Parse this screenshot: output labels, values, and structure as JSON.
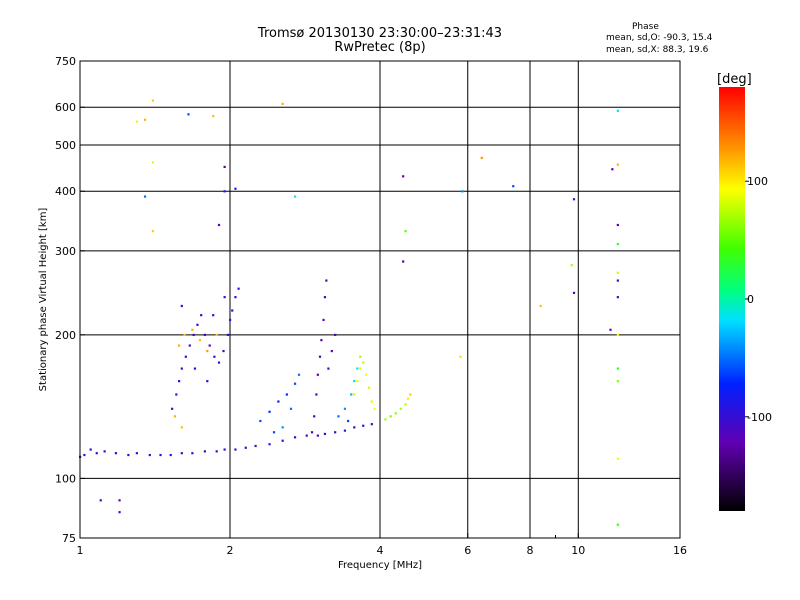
{
  "header": {
    "title_line1": "Tromsø 20130130 23:30:00–23:31:43",
    "title_line2": "RwPretec (8p)",
    "phase_heading": "Phase",
    "phase_line1": "mean, sd,O: -90.3, 15.4",
    "phase_line2": "mean, sd,X:  88.3, 19.6"
  },
  "colorbar": {
    "unit": "[deg]",
    "range": [
      -180,
      180
    ],
    "ticks": [
      {
        "label": "100",
        "value": 100
      },
      {
        "label": "0",
        "value": 0
      },
      {
        "label": "-100",
        "value": -100
      }
    ]
  },
  "chart_data": {
    "type": "scatter",
    "title": "Tromsø 20130130 23:30:00–23:31:43",
    "subtitle": "RwPretec (8p)",
    "xlabel": "Frequency [MHz]",
    "ylabel": "Stationary phase Virtual Height [km]",
    "x_scale": "log",
    "y_scale": "log",
    "xlim": [
      1,
      16
    ],
    "ylim": [
      75,
      750
    ],
    "x_ticks": [
      {
        "label": "1",
        "value": 1
      },
      {
        "label": "2",
        "value": 2
      },
      {
        "label": "4",
        "value": 4
      },
      {
        "label": "6",
        "value": 6
      },
      {
        "label": "8",
        "value": 8
      },
      {
        "label": "10",
        "value": 10
      },
      {
        "label": "16",
        "value": 16
      }
    ],
    "x_minor": [
      9
    ],
    "x_grid": [
      2,
      4,
      6,
      8,
      10
    ],
    "y_ticks": [
      {
        "label": "75",
        "value": 75
      },
      {
        "label": "100",
        "value": 100
      },
      {
        "label": "200",
        "value": 200
      },
      {
        "label": "300",
        "value": 300
      },
      {
        "label": "400",
        "value": 400
      },
      {
        "label": "500",
        "value": 500
      },
      {
        "label": "600",
        "value": 600
      },
      {
        "label": "750",
        "value": 750
      }
    ],
    "y_grid": [
      100,
      200,
      300,
      400,
      500,
      600
    ],
    "grid": true,
    "color_by": "phase [deg]",
    "color_range": [
      -180,
      180
    ],
    "series": [
      {
        "points": [
          [
            1.0,
            111,
            -100
          ],
          [
            1.02,
            112,
            -110
          ],
          [
            1.05,
            115,
            -95
          ],
          [
            1.08,
            113,
            -105
          ],
          [
            1.12,
            114,
            -100
          ],
          [
            1.18,
            113,
            -95
          ],
          [
            1.25,
            112,
            -110
          ],
          [
            1.3,
            113,
            -100
          ],
          [
            1.38,
            112,
            -105
          ],
          [
            1.45,
            112,
            -100
          ],
          [
            1.52,
            112,
            -95
          ],
          [
            1.6,
            113,
            -105
          ],
          [
            1.68,
            113,
            -100
          ],
          [
            1.78,
            114,
            -110
          ],
          [
            1.88,
            114,
            -100
          ],
          [
            1.95,
            115,
            -95
          ],
          [
            2.05,
            115,
            -105
          ],
          [
            2.15,
            116,
            -100
          ],
          [
            2.25,
            117,
            -110
          ],
          [
            2.4,
            118,
            -100
          ],
          [
            2.55,
            120,
            -105
          ],
          [
            2.7,
            122,
            -95
          ],
          [
            2.85,
            123,
            -100
          ],
          [
            3.0,
            123,
            -110
          ],
          [
            3.1,
            124,
            -100
          ],
          [
            3.25,
            125,
            -105
          ],
          [
            3.4,
            126,
            -95
          ],
          [
            3.55,
            128,
            -110
          ],
          [
            3.7,
            129,
            -100
          ],
          [
            3.85,
            130,
            -105
          ]
        ]
      },
      {
        "points": [
          [
            1.53,
            140,
            -100
          ],
          [
            1.56,
            150,
            -95
          ],
          [
            1.58,
            160,
            -100
          ],
          [
            1.6,
            170,
            -110
          ],
          [
            1.63,
            180,
            -95
          ],
          [
            1.66,
            190,
            -100
          ],
          [
            1.69,
            200,
            -105
          ],
          [
            1.72,
            210,
            -100
          ],
          [
            1.75,
            220,
            -95
          ],
          [
            1.78,
            200,
            -110
          ],
          [
            1.82,
            190,
            -100
          ],
          [
            1.86,
            180,
            -105
          ],
          [
            1.9,
            175,
            -95
          ],
          [
            1.94,
            185,
            -100
          ],
          [
            1.98,
            200,
            -110
          ],
          [
            2.0,
            215,
            -100
          ],
          [
            2.02,
            225,
            -95
          ],
          [
            2.05,
            240,
            -105
          ],
          [
            2.08,
            250,
            -100
          ],
          [
            1.6,
            230,
            -95
          ],
          [
            1.7,
            170,
            -100
          ],
          [
            1.8,
            160,
            -105
          ],
          [
            1.85,
            220,
            -100
          ],
          [
            1.95,
            240,
            -110
          ]
        ]
      },
      {
        "points": [
          [
            1.58,
            190,
            120
          ],
          [
            1.62,
            200,
            110
          ],
          [
            1.68,
            205,
            120
          ],
          [
            1.74,
            195,
            115
          ],
          [
            1.8,
            185,
            125
          ],
          [
            1.88,
            200,
            110
          ],
          [
            1.55,
            135,
            120
          ],
          [
            1.6,
            128,
            115
          ]
        ]
      },
      {
        "points": [
          [
            2.3,
            132,
            -60
          ],
          [
            2.4,
            138,
            -70
          ],
          [
            2.5,
            145,
            -80
          ],
          [
            2.6,
            150,
            -70
          ],
          [
            2.7,
            158,
            -60
          ],
          [
            2.75,
            165,
            -50
          ],
          [
            2.55,
            128,
            -40
          ],
          [
            2.45,
            125,
            -60
          ],
          [
            2.65,
            140,
            -50
          ]
        ]
      },
      {
        "points": [
          [
            2.92,
            125,
            -120
          ],
          [
            2.95,
            135,
            -115
          ],
          [
            2.98,
            150,
            -110
          ],
          [
            3.0,
            165,
            -120
          ],
          [
            3.03,
            180,
            -115
          ],
          [
            3.05,
            195,
            -120
          ],
          [
            3.08,
            215,
            -110
          ],
          [
            3.1,
            240,
            -115
          ],
          [
            3.12,
            260,
            -120
          ],
          [
            3.15,
            170,
            -110
          ],
          [
            3.2,
            185,
            -120
          ],
          [
            3.25,
            200,
            -115
          ]
        ]
      },
      {
        "points": [
          [
            3.3,
            135,
            -50
          ],
          [
            3.4,
            140,
            -40
          ],
          [
            3.5,
            150,
            -30
          ],
          [
            3.55,
            160,
            -20
          ],
          [
            3.45,
            132,
            -60
          ],
          [
            3.6,
            170,
            -10
          ]
        ]
      },
      {
        "points": [
          [
            3.55,
            150,
            80
          ],
          [
            3.6,
            160,
            90
          ],
          [
            3.65,
            170,
            85
          ],
          [
            3.7,
            175,
            75
          ],
          [
            3.75,
            165,
            90
          ],
          [
            3.8,
            155,
            80
          ],
          [
            3.85,
            145,
            85
          ],
          [
            3.9,
            140,
            90
          ],
          [
            3.65,
            180,
            70
          ]
        ]
      },
      {
        "points": [
          [
            4.1,
            133,
            70
          ],
          [
            4.2,
            135,
            60
          ],
          [
            4.3,
            137,
            65
          ],
          [
            4.4,
            140,
            70
          ],
          [
            4.5,
            143,
            75
          ],
          [
            4.55,
            147,
            100
          ],
          [
            4.6,
            150,
            110
          ]
        ]
      },
      {
        "points": [
          [
            1.4,
            620,
            110
          ],
          [
            1.35,
            565,
            120
          ],
          [
            1.3,
            560,
            100
          ],
          [
            1.85,
            575,
            115
          ],
          [
            2.55,
            610,
            120
          ],
          [
            6.4,
            470,
            130
          ],
          [
            12.0,
            455,
            120
          ],
          [
            1.4,
            460,
            100
          ],
          [
            1.4,
            330,
            110
          ],
          [
            5.8,
            180,
            105
          ],
          [
            8.4,
            230,
            115
          ],
          [
            9.7,
            280,
            70
          ],
          [
            12.0,
            270,
            80
          ],
          [
            12.0,
            200,
            90
          ]
        ]
      },
      {
        "points": [
          [
            1.65,
            580,
            -60
          ],
          [
            12.0,
            590,
            -20
          ],
          [
            1.35,
            390,
            -50
          ],
          [
            2.7,
            390,
            -10
          ],
          [
            5.85,
            400,
            -40
          ],
          [
            7.4,
            410,
            -60
          ],
          [
            1.95,
            400,
            -80
          ],
          [
            2.05,
            405,
            -90
          ]
        ]
      },
      {
        "points": [
          [
            1.95,
            450,
            -130
          ],
          [
            4.45,
            430,
            -120
          ],
          [
            11.7,
            445,
            -125
          ],
          [
            12.0,
            340,
            -120
          ],
          [
            4.45,
            285,
            -130
          ],
          [
            9.8,
            385,
            -110
          ],
          [
            1.9,
            340,
            -120
          ],
          [
            9.8,
            245,
            -115
          ],
          [
            11.6,
            205,
            -120
          ],
          [
            12.0,
            240,
            -110
          ],
          [
            12.0,
            260,
            -115
          ]
        ]
      },
      {
        "points": [
          [
            1.1,
            90,
            -110
          ],
          [
            1.2,
            90,
            -120
          ],
          [
            1.2,
            85,
            -100
          ],
          [
            12.0,
            80,
            40
          ],
          [
            12.0,
            110,
            90
          ],
          [
            12.0,
            160,
            60
          ],
          [
            12.0,
            170,
            30
          ],
          [
            12.0,
            310,
            30
          ],
          [
            4.5,
            330,
            50
          ]
        ]
      }
    ]
  }
}
